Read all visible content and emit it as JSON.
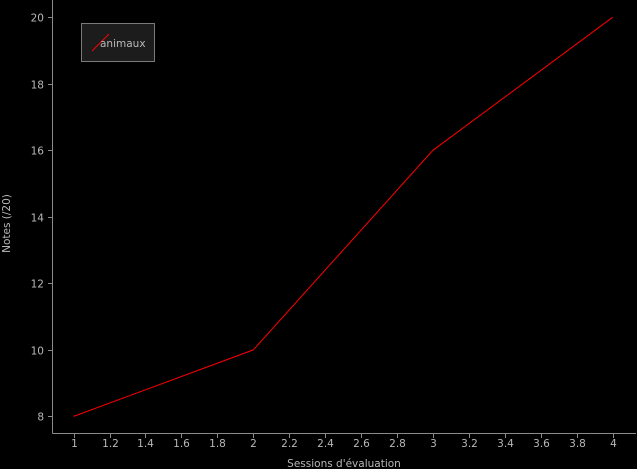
{
  "chart_data": {
    "type": "line",
    "xlabel": "Sessions d'évaluation",
    "ylabel": "Notes (/20)",
    "xlim": [
      0.88,
      4.13
    ],
    "ylim": [
      7.5,
      20.1
    ],
    "x_ticks": [
      1,
      1.2,
      1.4,
      1.6,
      1.8,
      2,
      2.2,
      2.4,
      2.6,
      2.8,
      3,
      3.2,
      3.4,
      3.6,
      3.8,
      4
    ],
    "y_ticks": [
      8,
      10,
      12,
      14,
      16,
      18,
      20
    ],
    "grid": false,
    "legend_position": "top-left",
    "series": [
      {
        "name": "animaux",
        "color": "#ff0000",
        "x": [
          1,
          2,
          3,
          4
        ],
        "y": [
          8,
          10,
          16,
          20
        ]
      }
    ]
  }
}
